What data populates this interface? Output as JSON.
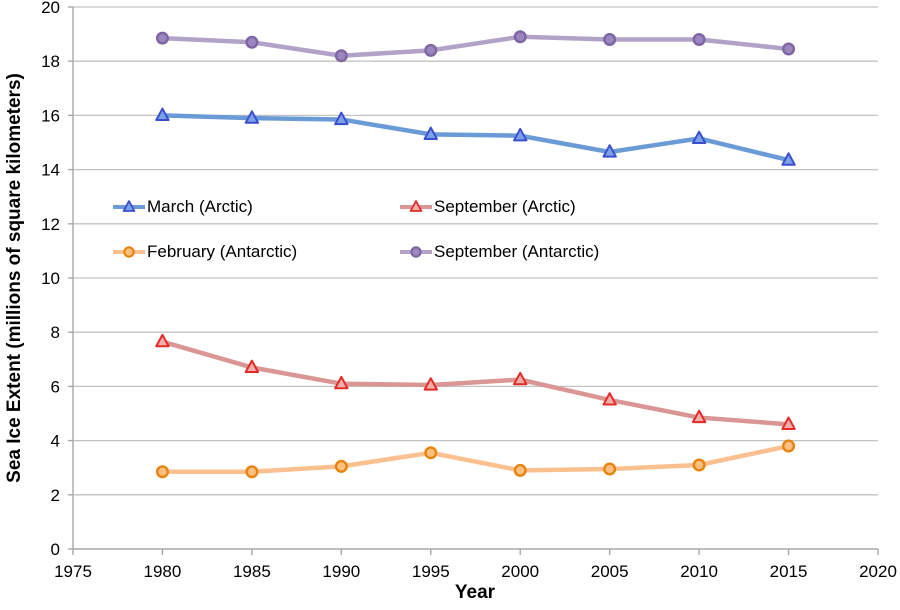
{
  "chart_data": {
    "type": "line",
    "title": "",
    "xlabel": "Year",
    "ylabel": "Sea Ice Extent (millions of square kilometers)",
    "xlim": [
      1975,
      2020
    ],
    "ylim": [
      0,
      20
    ],
    "x_ticks": [
      1975,
      1980,
      1985,
      1990,
      1995,
      2000,
      2005,
      2010,
      2015,
      2020
    ],
    "y_ticks": [
      0,
      2,
      4,
      6,
      8,
      10,
      12,
      14,
      16,
      18,
      20
    ],
    "grid": "horizontal",
    "legend_position": "inside-upper-left, 2 columns, no border",
    "axis_color": "#a8a8a8",
    "grid_color": "#c3c3c3",
    "x": [
      1980,
      1985,
      1990,
      1995,
      2000,
      2005,
      2010,
      2015
    ],
    "series": [
      {
        "name": "March (Arctic)",
        "marker": "triangle",
        "line_color": "#6b9bd7",
        "marker_stroke": "#3a4fd0",
        "marker_fill": "#7ca1e6",
        "values": [
          16.0,
          15.9,
          15.85,
          15.3,
          15.25,
          14.65,
          15.15,
          14.35
        ]
      },
      {
        "name": "September (Arctic)",
        "marker": "triangle",
        "line_color": "#d99694",
        "marker_stroke": "#e62a28",
        "marker_fill": "#f2b0ac",
        "values": [
          7.65,
          6.7,
          6.1,
          6.05,
          6.25,
          5.5,
          4.85,
          4.6
        ]
      },
      {
        "name": "February (Antarctic)",
        "marker": "circle",
        "line_color": "#fac090",
        "marker_stroke": "#e8830d",
        "marker_fill": "#fbbf80",
        "values": [
          2.85,
          2.85,
          3.05,
          3.55,
          2.9,
          2.95,
          3.1,
          3.8
        ]
      },
      {
        "name": "September (Antarctic)",
        "marker": "circle",
        "line_color": "#b3a2c7",
        "marker_stroke": "#7d66a2",
        "marker_fill": "#9c86c0",
        "values": [
          18.85,
          18.7,
          18.2,
          18.4,
          18.9,
          18.8,
          18.8,
          18.45
        ]
      }
    ]
  }
}
